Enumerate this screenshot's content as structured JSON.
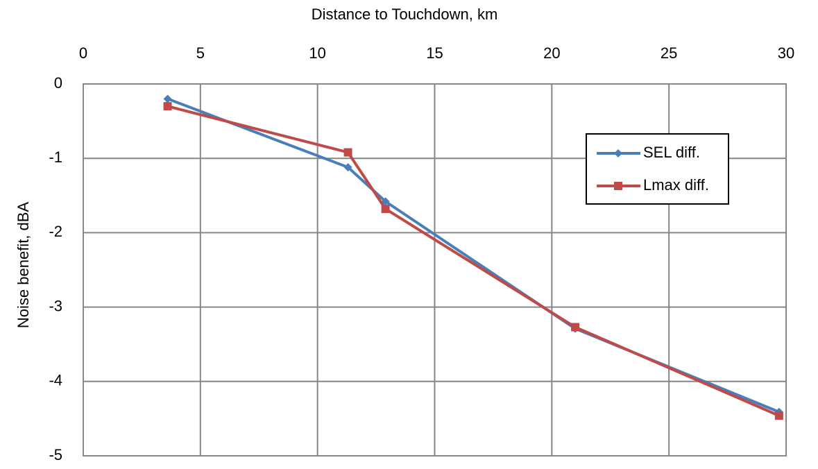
{
  "chart_data": {
    "type": "line",
    "x_label": "Distance to Touchdown, km",
    "y_label": "Noise benefit, dBA",
    "x": [
      3.6,
      11.3,
      12.9,
      21.0,
      29.7
    ],
    "series": [
      {
        "name": "SEL diff.",
        "color": "#4a7ebb",
        "marker": "diamond",
        "values": [
          -0.2,
          -1.12,
          -1.58,
          -3.29,
          -4.41
        ]
      },
      {
        "name": "Lmax diff.",
        "color": "#be4b48",
        "marker": "square",
        "values": [
          -0.3,
          -0.92,
          -1.68,
          -3.27,
          -4.46
        ]
      }
    ],
    "xlim": [
      0,
      30
    ],
    "xticks": [
      0,
      5,
      10,
      15,
      20,
      25,
      30
    ],
    "ylim": [
      -5,
      0
    ],
    "yticks": [
      0,
      -1,
      -2,
      -3,
      -4,
      -5
    ],
    "x_axis_position": "top",
    "grid": true,
    "legend_position": "right"
  }
}
